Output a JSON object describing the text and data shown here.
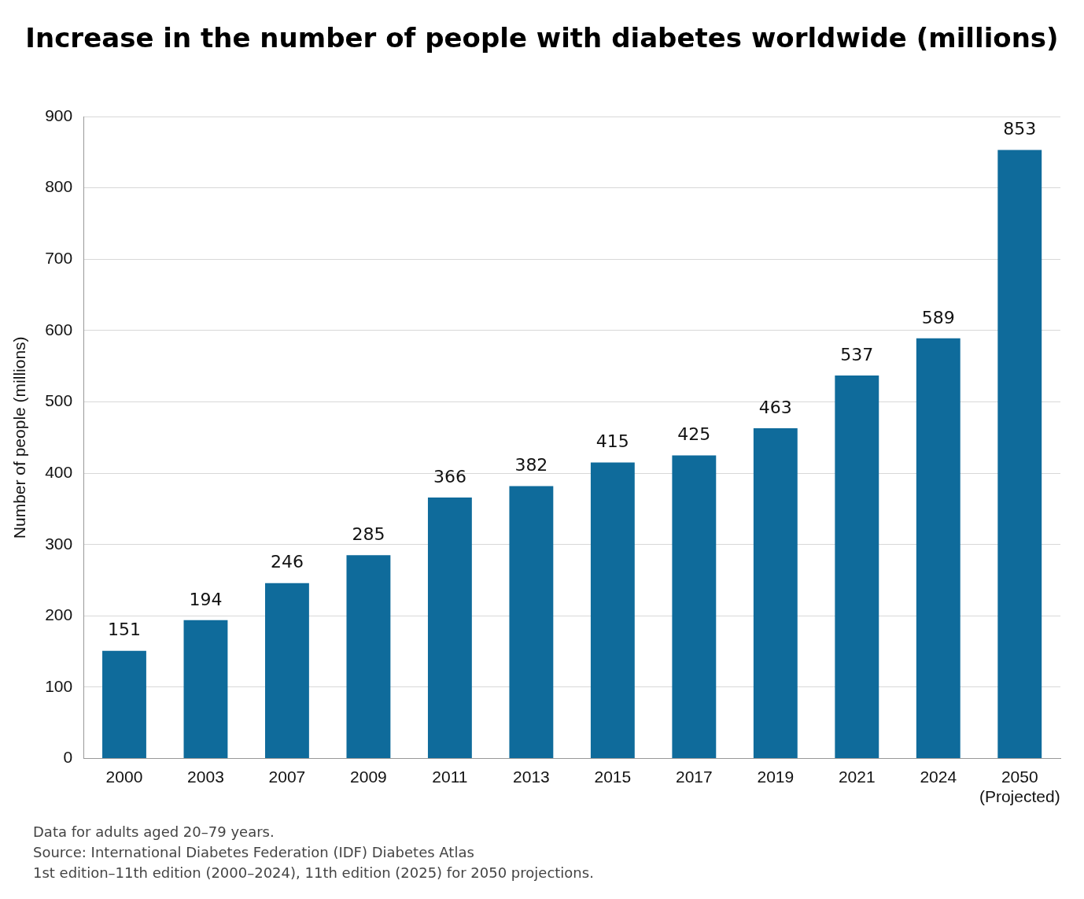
{
  "chart_data": {
    "type": "bar",
    "title": "Increase in the number of people with diabetes worldwide (millions)",
    "ylabel": "Number of people (millions)",
    "categories": [
      "2000",
      "2003",
      "2007",
      "2009",
      "2011",
      "2013",
      "2015",
      "2017",
      "2019",
      "2021",
      "2024",
      "2050\n(Projected)"
    ],
    "values": [
      151,
      194,
      246,
      285,
      366,
      382,
      415,
      425,
      463,
      537,
      589,
      853
    ],
    "color": "#0f6b9b",
    "ylim": [
      0,
      900
    ],
    "yticks": [
      0,
      100,
      200,
      300,
      400,
      500,
      600,
      700,
      800,
      900
    ],
    "grid": "y",
    "data_labels": true,
    "legend": false,
    "annotations": [
      "Data for adults aged 20–79 years.",
      "Source: International Diabetes Federation (IDF) Diabetes Atlas",
      "1st edition–11th edition (2000–2024), 11th edition (2025) for 2050 projections."
    ]
  }
}
